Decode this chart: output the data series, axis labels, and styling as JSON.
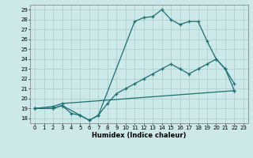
{
  "xlabel": "Humidex (Indice chaleur)",
  "bg_color": "#cce8e8",
  "grid_color": "#aacaca",
  "line_color": "#1a7070",
  "xlim": [
    -0.5,
    23.5
  ],
  "ylim": [
    17.5,
    29.5
  ],
  "xticks": [
    0,
    1,
    2,
    3,
    4,
    5,
    6,
    7,
    8,
    9,
    10,
    11,
    12,
    13,
    14,
    15,
    16,
    17,
    18,
    19,
    20,
    21,
    22,
    23
  ],
  "yticks": [
    18,
    19,
    20,
    21,
    22,
    23,
    24,
    25,
    26,
    27,
    28,
    29
  ],
  "line1_x": [
    0,
    2,
    3,
    5,
    6,
    7,
    11,
    12,
    13,
    14,
    15,
    16,
    17,
    18,
    19,
    20,
    21,
    22
  ],
  "line1_y": [
    19,
    19,
    19.3,
    18.3,
    17.8,
    18.3,
    27.8,
    28.2,
    28.3,
    29.0,
    28.0,
    27.5,
    27.8,
    27.8,
    25.8,
    24.0,
    23.0,
    21.5
  ],
  "line2_x": [
    0,
    2,
    3,
    4,
    5,
    6,
    7,
    8,
    9,
    10,
    11,
    12,
    13,
    14,
    15,
    16,
    17,
    18,
    19,
    20,
    21,
    22
  ],
  "line2_y": [
    19,
    19,
    19.3,
    18.5,
    18.3,
    17.8,
    18.3,
    19.5,
    20.5,
    21.0,
    21.5,
    22.0,
    22.5,
    23.0,
    23.5,
    23.0,
    22.5,
    23.0,
    23.5,
    24.0,
    23.0,
    20.8
  ],
  "line3_x": [
    0,
    2,
    3,
    22
  ],
  "line3_y": [
    19,
    19.2,
    19.5,
    20.8
  ]
}
